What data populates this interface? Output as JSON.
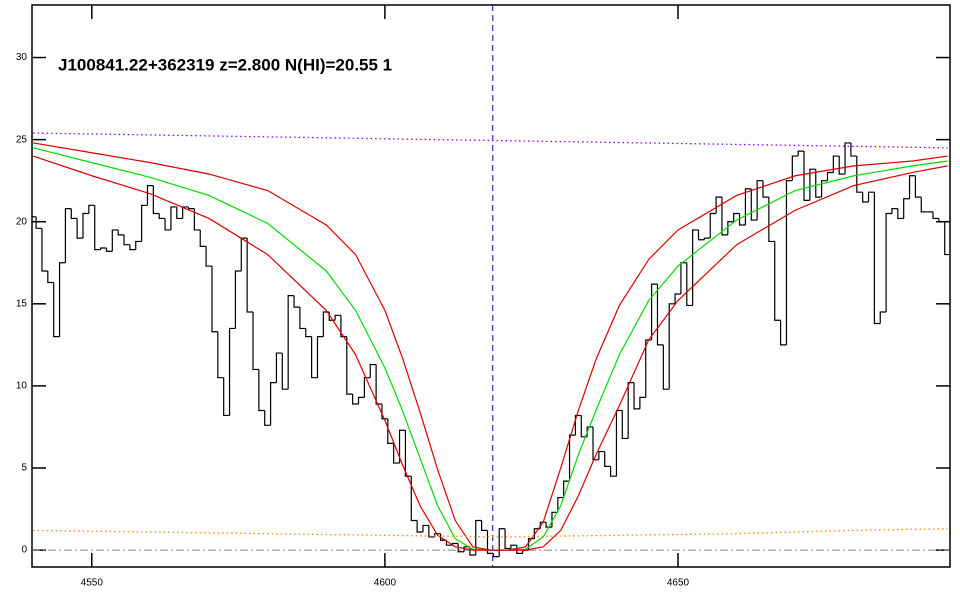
{
  "chart_data": {
    "type": "line",
    "title": "J100841.22+362319 z=2.800 N(HI)=20.55 1",
    "xlim": [
      4539.8,
      4696.4
    ],
    "ylim": [
      -1.03,
      33.2
    ],
    "xticks": [
      4550,
      4600,
      4650
    ],
    "yticks": [
      0,
      5,
      10,
      15,
      20,
      25,
      30
    ],
    "reference_lines": {
      "y": 0,
      "x": 4618.4
    },
    "series": [
      {
        "style": "step",
        "color": "#000000",
        "x": [
          4540,
          4541,
          4542,
          4543,
          4544,
          4545,
          4546,
          4547,
          4548,
          4549,
          4550,
          4551,
          4552,
          4553,
          4554,
          4555,
          4556,
          4557,
          4558,
          4559,
          4560,
          4561,
          4562,
          4563,
          4564,
          4565,
          4566,
          4567,
          4568,
          4569,
          4570,
          4571,
          4572,
          4573,
          4574,
          4575,
          4576,
          4577,
          4578,
          4579,
          4580,
          4581,
          4582,
          4583,
          4584,
          4585,
          4586,
          4587,
          4588,
          4589,
          4590,
          4591,
          4592,
          4593,
          4594,
          4595,
          4596,
          4597,
          4598,
          4599,
          4600,
          4601,
          4602,
          4603,
          4604,
          4605,
          4606,
          4607,
          4608,
          4609,
          4610,
          4611,
          4612,
          4613,
          4614,
          4615,
          4616,
          4617,
          4618,
          4619,
          4620,
          4621,
          4622,
          4623,
          4624,
          4625,
          4626,
          4627,
          4628,
          4629,
          4630,
          4631,
          4632,
          4633,
          4634,
          4635,
          4636,
          4637,
          4638,
          4639,
          4640,
          4641,
          4642,
          4643,
          4644,
          4645,
          4646,
          4647,
          4648,
          4649,
          4650,
          4651,
          4652,
          4653,
          4654,
          4655,
          4656,
          4657,
          4658,
          4659,
          4660,
          4661,
          4662,
          4663,
          4664,
          4665,
          4666,
          4667,
          4668,
          4669,
          4670,
          4671,
          4672,
          4673,
          4674,
          4675,
          4676,
          4677,
          4678,
          4679,
          4680,
          4681,
          4682,
          4683,
          4684,
          4685,
          4686,
          4687,
          4688,
          4689,
          4690,
          4691,
          4692,
          4693,
          4694,
          4695,
          4696
        ],
        "values": [
          20.3,
          19.6,
          17.0,
          16.3,
          13.0,
          17.5,
          20.8,
          20.2,
          19.0,
          20.5,
          21.0,
          18.3,
          18.4,
          18.2,
          19.5,
          19.2,
          18.6,
          18.3,
          18.8,
          21.0,
          22.2,
          20.5,
          20.2,
          19.5,
          20.9,
          20.2,
          20.9,
          20.8,
          19.5,
          18.5,
          17.3,
          13.3,
          10.5,
          8.2,
          13.5,
          17.0,
          19.0,
          14.5,
          11.0,
          8.5,
          7.6,
          10.2,
          12.0,
          9.8,
          15.5,
          14.8,
          13.5,
          13.0,
          10.5,
          13.0,
          14.5,
          14.0,
          14.3,
          13.0,
          9.5,
          8.9,
          9.3,
          10.5,
          11.3,
          8.9,
          8.0,
          6.5,
          5.3,
          7.3,
          4.5,
          1.8,
          1.1,
          1.5,
          0.8,
          1.0,
          0.6,
          0.3,
          0.4,
          -0.1,
          0.2,
          -0.3,
          1.8,
          1.2,
          -0.2,
          -0.4,
          1.3,
          0.1,
          0.3,
          -0.2,
          0.0,
          0.7,
          1.3,
          1.7,
          1.4,
          2.3,
          3.2,
          4.2,
          7.0,
          8.2,
          6.9,
          7.5,
          5.5,
          6.0,
          5.1,
          4.5,
          8.5,
          6.8,
          10.2,
          8.6,
          9.3,
          12.8,
          16.2,
          12.5,
          9.8,
          15.0,
          15.6,
          17.5,
          14.9,
          19.5,
          18.9,
          19.0,
          20.5,
          21.5,
          19.2,
          20.0,
          20.5,
          19.8,
          22.0,
          20.1,
          22.5,
          21.5,
          18.8,
          14.0,
          12.5,
          22.5,
          24.0,
          24.3,
          21.3,
          23.2,
          21.5,
          22.5,
          23.0,
          24.0,
          22.9,
          24.8,
          24.0,
          21.8,
          21.2,
          21.8,
          13.8,
          14.5,
          20.5,
          20.8,
          20.2,
          21.4,
          22.8,
          21.5,
          20.6,
          20.6,
          20.2,
          20.0,
          18.0
        ]
      },
      {
        "style": "solid",
        "color": "#00dd00",
        "x": [
          4540,
          4550,
          4560,
          4570,
          4580,
          4590,
          4595,
          4600,
          4603,
          4606,
          4609,
          4612,
          4615,
          4618,
          4621,
          4624,
          4627,
          4630,
          4633,
          4636,
          4640,
          4645,
          4650,
          4660,
          4670,
          4680,
          4690,
          4696
        ],
        "values": [
          24.5,
          23.6,
          22.7,
          21.6,
          19.9,
          17.0,
          14.6,
          11.1,
          8.5,
          5.6,
          2.7,
          0.7,
          0.05,
          0,
          0,
          0.05,
          0.8,
          2.7,
          5.8,
          8.5,
          11.9,
          15.2,
          17.3,
          20.1,
          21.9,
          22.8,
          23.4,
          23.7
        ]
      },
      {
        "style": "solid",
        "color": "#dd0000",
        "x": [
          4540,
          4550,
          4560,
          4570,
          4580,
          4590,
          4595,
          4600,
          4603,
          4606,
          4609,
          4612,
          4615,
          4618,
          4621,
          4624,
          4627,
          4630,
          4633,
          4636,
          4640,
          4645,
          4650,
          4660,
          4670,
          4680,
          4690,
          4696
        ],
        "values": [
          24.8,
          24.2,
          23.6,
          22.9,
          21.9,
          19.8,
          18.0,
          14.6,
          11.7,
          8.4,
          4.9,
          1.8,
          0.2,
          0,
          0,
          0.2,
          1.7,
          5.0,
          8.5,
          11.6,
          14.9,
          17.7,
          19.5,
          21.6,
          22.8,
          23.4,
          23.7,
          24.0
        ]
      },
      {
        "style": "solid",
        "color": "#dd0000",
        "x": [
          4540,
          4550,
          4560,
          4570,
          4580,
          4590,
          4595,
          4600,
          4603,
          4606,
          4609,
          4612,
          4615,
          4618,
          4621,
          4624,
          4627,
          4630,
          4633,
          4636,
          4640,
          4645,
          4650,
          4660,
          4670,
          4680,
          4690,
          4696
        ],
        "values": [
          24.0,
          22.8,
          21.7,
          20.2,
          18.0,
          14.6,
          11.9,
          7.9,
          5.2,
          2.7,
          0.9,
          0.2,
          0,
          0,
          0,
          0,
          0.2,
          1.2,
          3.3,
          5.8,
          8.8,
          12.8,
          15.2,
          18.6,
          20.7,
          22.2,
          23.0,
          23.4
        ]
      },
      {
        "style": "dotted",
        "color": "#8800ff",
        "x": [
          4540,
          4696
        ],
        "values": [
          25.4,
          24.5
        ]
      },
      {
        "style": "dotted",
        "color": "#ff8800",
        "x": [
          4540,
          4560,
          4580,
          4600,
          4620,
          4640,
          4660,
          4680,
          4696
        ],
        "values": [
          1.2,
          1.1,
          1.0,
          0.9,
          0.8,
          0.9,
          1.0,
          1.2,
          1.3
        ]
      }
    ]
  }
}
